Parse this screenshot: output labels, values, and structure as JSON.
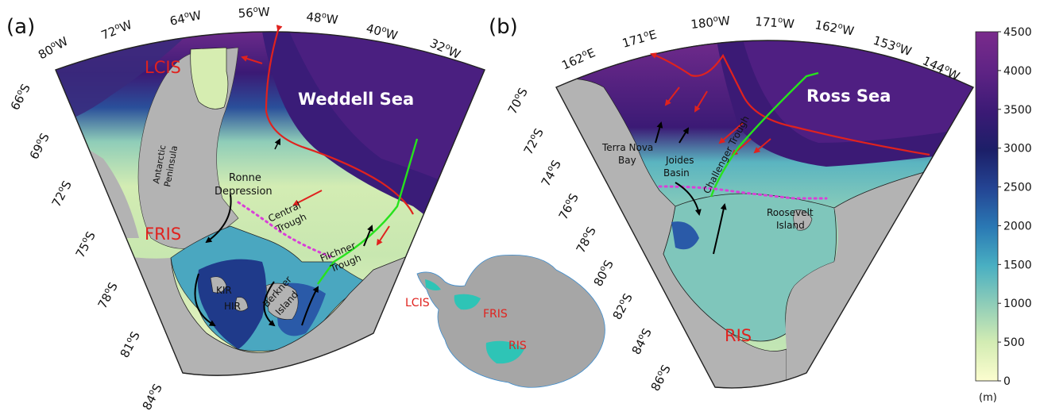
{
  "panel_a": {
    "panel_label": "(a)",
    "lon_labels": [
      "80",
      "72",
      "64",
      "56",
      "48",
      "40",
      "32"
    ],
    "lat_labels": [
      "66",
      "69",
      "72",
      "75",
      "78",
      "81",
      "84"
    ],
    "region_labels": {
      "lcis": "LCIS",
      "fris": "FRIS",
      "sea": "Weddell Sea",
      "peninsula_1": "Antarctic",
      "peninsula_2": "Peninsula",
      "ronne_1": "Ronne",
      "ronne_2": "Depression",
      "central_1": "Central",
      "central_2": "Trough",
      "filchner_1": "Filchner",
      "filchner_2": "Trough",
      "kir": "KIR",
      "hir": "HIR",
      "berkner_1": "Berkner",
      "berkner_2": "Island"
    }
  },
  "panel_b": {
    "panel_label": "(b)",
    "lon_labels": [
      "162",
      "171",
      "180",
      "171",
      "162",
      "153",
      "144"
    ],
    "lon_hemi": [
      "E",
      "E",
      "W",
      "W",
      "W",
      "W",
      "W"
    ],
    "lat_labels": [
      "70",
      "72",
      "74",
      "76",
      "78",
      "80",
      "82",
      "84",
      "86"
    ],
    "region_labels": {
      "sea": "Ross Sea",
      "ris": "RIS",
      "terra_1": "Terra Nova",
      "terra_2": "Bay",
      "joides_1": "Joides",
      "joides_2": "Basin",
      "challenger": "Challenger Trough",
      "roosevelt_1": "Roosevelt",
      "roosevelt_2": "Island"
    }
  },
  "inset": {
    "labels": {
      "lcis": "LCIS",
      "fris": "FRIS",
      "ris": "RIS"
    }
  },
  "colorbar": {
    "ticks": [
      "4500",
      "4000",
      "3500",
      "3000",
      "2500",
      "2000",
      "1500",
      "1000",
      "500",
      "0"
    ],
    "unit": "(m)",
    "range": [
      0,
      4500
    ],
    "colors": [
      "#fcfdcf",
      "#d3ecb3",
      "#8fcdb8",
      "#49afc2",
      "#2a79b4",
      "#244594",
      "#1c1f68",
      "#3b1a75",
      "#5d2384",
      "#7a2b8c"
    ]
  },
  "legend_colors": {
    "warm_inflow": "#e0221e",
    "section_line": "#27e21d",
    "dotted_front": "#d93fd8",
    "circulation": "#000000",
    "land": "#b3b3b3",
    "ice_shelf_inset": "#2ec4b6"
  }
}
